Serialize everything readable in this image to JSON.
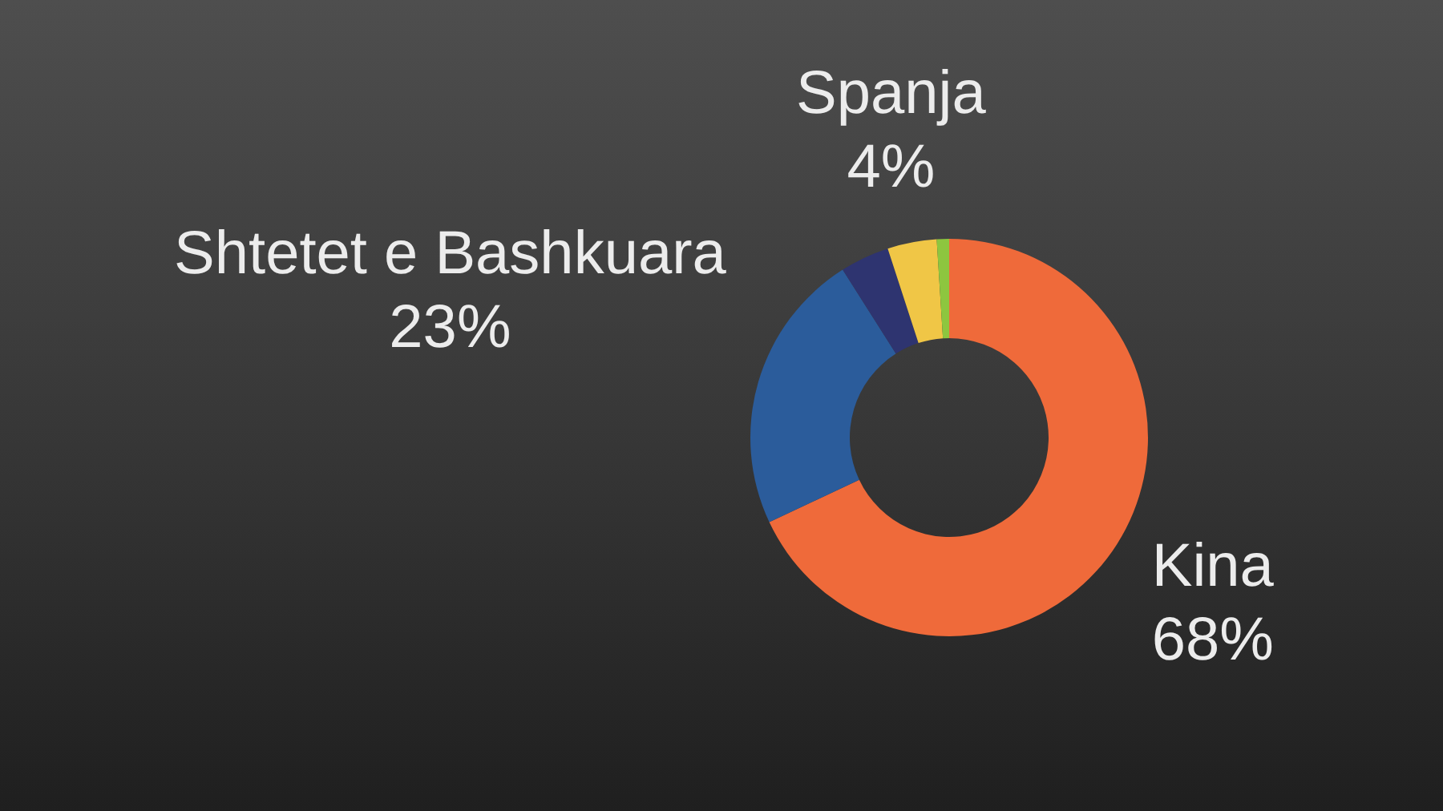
{
  "chart_data": {
    "type": "donut",
    "categories": [
      "Kina",
      "Shtetet e Bashkuara",
      null,
      "Spanja",
      null
    ],
    "values": [
      68,
      23,
      4,
      4,
      1
    ],
    "colors": [
      "#ef6a3a",
      "#2b5c9b",
      "#2e3470",
      "#f0c646",
      "#8dc63f"
    ],
    "value_labels": [
      "68%",
      "23%",
      null,
      "4%",
      null
    ]
  }
}
